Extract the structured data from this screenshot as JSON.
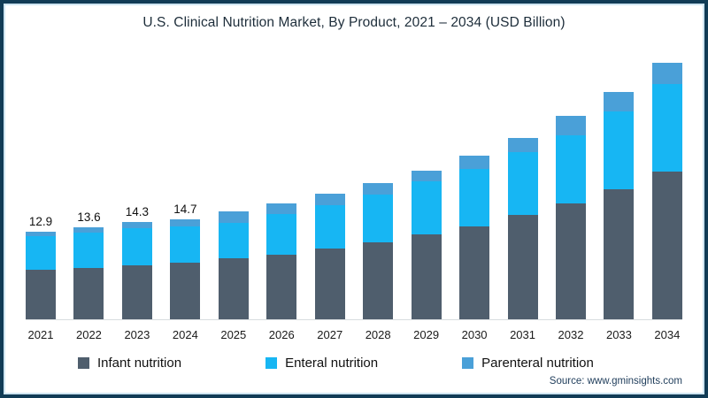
{
  "title": "U.S. Clinical Nutrition Market, By Product, 2021 – 2034 (USD Billion)",
  "source": "Source: www.gminsights.com",
  "colors": {
    "frame_border": "#113c56",
    "frame_inner_line": "#cfe6f2",
    "axis_line": "#d8dcdf",
    "infant": "#4f5e6d",
    "enteral": "#17b6f3",
    "parenteral": "#4aa0d8"
  },
  "chart_data": {
    "type": "bar",
    "stacked": true,
    "title": "U.S. Clinical Nutrition Market, By Product, 2021 – 2034 (USD Billion)",
    "xlabel": "",
    "ylabel": "USD Billion",
    "ylim": [
      0,
      38
    ],
    "grid": false,
    "legend_position": "bottom",
    "categories": [
      "2021",
      "2022",
      "2023",
      "2024",
      "2025",
      "2026",
      "2027",
      "2028",
      "2029",
      "2030",
      "2031",
      "2032",
      "2033",
      "2034"
    ],
    "series": [
      {
        "name": "Infant nutrition",
        "color": "#4f5e6d",
        "values": [
          7.3,
          7.6,
          8.0,
          8.4,
          9.0,
          9.6,
          10.4,
          11.4,
          12.6,
          13.7,
          15.4,
          17.1,
          19.2,
          21.8
        ]
      },
      {
        "name": "Enteral nutrition",
        "color": "#17b6f3",
        "values": [
          5.0,
          5.2,
          5.4,
          5.3,
          5.3,
          5.9,
          6.5,
          7.0,
          7.8,
          8.5,
          9.3,
          10.0,
          11.5,
          13.0
        ]
      },
      {
        "name": "Parenteral nutrition",
        "color": "#4aa0d8",
        "values": [
          0.6,
          0.8,
          0.9,
          1.0,
          1.6,
          1.6,
          1.7,
          1.7,
          1.6,
          2.0,
          2.1,
          2.9,
          2.9,
          3.1
        ]
      }
    ],
    "totals": [
      12.9,
      13.6,
      14.3,
      14.7,
      15.9,
      17.1,
      18.6,
      20.1,
      22.0,
      24.2,
      26.8,
      30.0,
      33.6,
      37.9
    ],
    "bar_labels": [
      "12.9",
      "13.6",
      "14.3",
      "14.7",
      "",
      "",
      "",
      "",
      "",
      "",
      "",
      "",
      "",
      ""
    ]
  }
}
